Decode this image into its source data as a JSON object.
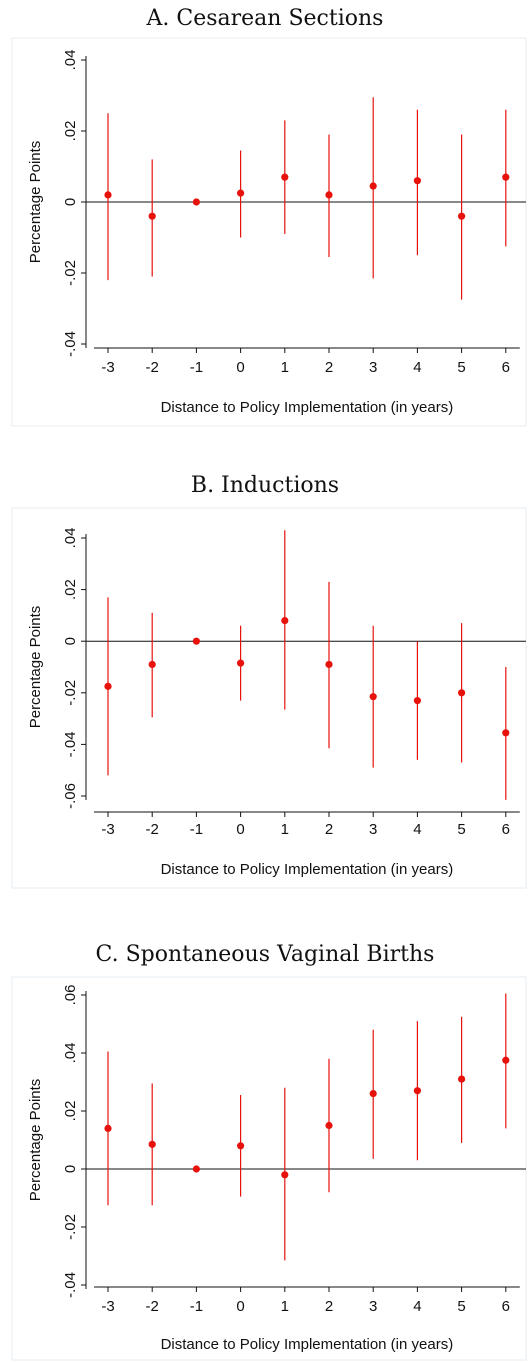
{
  "chart_data": [
    {
      "type": "scatter",
      "title": "A. Cesarean Sections",
      "xlabel": "Distance to Policy Implementation (in years)",
      "ylabel": "Percentage Points",
      "x": [
        -3,
        -2,
        -1,
        0,
        1,
        2,
        3,
        4,
        5,
        6
      ],
      "x_tick_labels": [
        "-3",
        "-2",
        "-1",
        "0",
        "1",
        "2",
        "3",
        "4",
        "5",
        "6"
      ],
      "ylim": [
        -0.04,
        0.04
      ],
      "y_ticks": [
        -0.04,
        -0.02,
        0,
        0.02,
        0.04
      ],
      "y_tick_labels": [
        "-.04",
        "-.02",
        "0",
        ".02",
        ".04"
      ],
      "series": [
        {
          "estimate": [
            0.002,
            -0.004,
            0.0,
            0.0025,
            0.007,
            0.002,
            0.0045,
            0.006,
            -0.004,
            0.007
          ],
          "ci_low": [
            -0.022,
            -0.021,
            0.0,
            -0.01,
            -0.009,
            -0.0155,
            -0.0215,
            -0.015,
            -0.0275,
            -0.0125
          ],
          "ci_high": [
            0.025,
            0.012,
            0.0,
            0.0145,
            0.023,
            0.019,
            0.0295,
            0.026,
            0.019,
            0.026
          ]
        }
      ],
      "reference_line": 0,
      "grid": false
    },
    {
      "type": "scatter",
      "title": "B. Inductions",
      "xlabel": "Distance to Policy Implementation (in years)",
      "ylabel": "Percentage Points",
      "x": [
        -3,
        -2,
        -1,
        0,
        1,
        2,
        3,
        4,
        5,
        6
      ],
      "x_tick_labels": [
        "-3",
        "-2",
        "-1",
        "0",
        "1",
        "2",
        "3",
        "4",
        "5",
        "6"
      ],
      "ylim": [
        -0.065,
        0.045
      ],
      "y_ticks": [
        -0.06,
        -0.04,
        -0.02,
        0,
        0.02,
        0.04
      ],
      "y_tick_labels": [
        "-.06",
        "-.04",
        "-.02",
        "0",
        ".02",
        ".04"
      ],
      "series": [
        {
          "estimate": [
            -0.0175,
            -0.009,
            0.0,
            -0.0085,
            0.008,
            -0.009,
            -0.0215,
            -0.023,
            -0.02,
            -0.0355
          ],
          "ci_low": [
            -0.052,
            -0.0295,
            0.0,
            -0.023,
            -0.0265,
            -0.0415,
            -0.049,
            -0.046,
            -0.047,
            -0.0615
          ],
          "ci_high": [
            0.017,
            0.011,
            0.0,
            0.006,
            0.043,
            0.023,
            0.006,
            0.0,
            0.007,
            -0.01
          ]
        }
      ],
      "reference_line": 0,
      "grid": false
    },
    {
      "type": "scatter",
      "title": "C. Spontaneous Vaginal Births",
      "xlabel": "Distance to Policy Implementation (in years)",
      "ylabel": "Percentage Points",
      "x": [
        -3,
        -2,
        -1,
        0,
        1,
        2,
        3,
        4,
        5,
        6
      ],
      "x_tick_labels": [
        "-3",
        "-2",
        "-1",
        "0",
        "1",
        "2",
        "3",
        "4",
        "5",
        "6"
      ],
      "ylim": [
        -0.04,
        0.06
      ],
      "y_ticks": [
        -0.04,
        -0.02,
        0,
        0.02,
        0.04,
        0.06
      ],
      "y_tick_labels": [
        "-.04",
        "-.02",
        "0",
        ".02",
        ".04",
        ".06"
      ],
      "series": [
        {
          "estimate": [
            0.014,
            0.0085,
            0.0,
            0.008,
            -0.002,
            0.015,
            0.026,
            0.027,
            0.031,
            0.0375
          ],
          "ci_low": [
            -0.0125,
            -0.0125,
            0.0,
            -0.0095,
            -0.0315,
            -0.008,
            0.0035,
            0.003,
            0.009,
            0.014
          ],
          "ci_high": [
            0.0405,
            0.0295,
            0.0,
            0.0255,
            0.028,
            0.038,
            0.048,
            0.051,
            0.0525,
            0.0605
          ]
        }
      ],
      "reference_line": 0,
      "grid": false
    }
  ],
  "colors": {
    "marker": "#e8120c",
    "axis": "#111111",
    "frame": "#e6ecf2"
  }
}
